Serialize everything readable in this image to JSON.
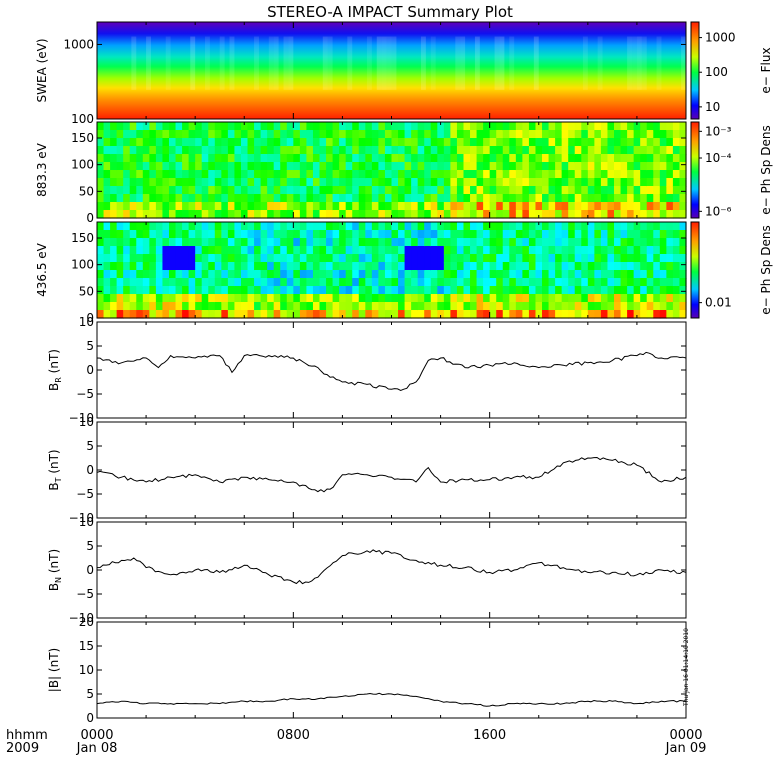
{
  "title": "STEREO-A IMPACT Summary Plot",
  "stamp": "Thu Jan 16 01:14:10 2010",
  "footer": {
    "time_format": "hhmm",
    "year": "2009",
    "tick_times": [
      "0000",
      "0800",
      "1600",
      "0000"
    ],
    "tick_dates": [
      "Jan 08",
      "",
      "",
      "Jan 09"
    ]
  },
  "colors": {
    "line": "#000000",
    "frame": "#000000",
    "background": "#ffffff"
  },
  "chart_data": [
    {
      "type": "heatmap",
      "id": "swea",
      "ylabel": "SWEA (eV)",
      "yscale": "log",
      "ylim": [
        100,
        2000
      ],
      "yticks": [
        100,
        1000
      ],
      "ytick_labels": [
        "100",
        "1000"
      ],
      "colorbar": {
        "label": "e− Flux",
        "scale": "log",
        "ticks": [
          10,
          100,
          1000
        ],
        "tick_labels": [
          "10",
          "100",
          "1000"
        ]
      },
      "colormap": "rainbow"
    },
    {
      "type": "heatmap",
      "id": "pad883",
      "ylabel": "883.3 eV",
      "ylim": [
        0,
        180
      ],
      "yticks": [
        0,
        50,
        100,
        150
      ],
      "ytick_labels": [
        "0",
        "50",
        "100",
        "150"
      ],
      "colorbar": {
        "label": "e− Ph Sp Dens",
        "scale": "log",
        "ticks": [
          1e-06,
          0.0001,
          0.001
        ],
        "tick_labels": [
          "10⁻⁶",
          "10⁻⁴",
          "10⁻³"
        ]
      },
      "colormap": "rainbow"
    },
    {
      "type": "heatmap",
      "id": "pad436",
      "ylabel": "436.5 eV",
      "ylim": [
        0,
        180
      ],
      "yticks": [
        0,
        50,
        100,
        150
      ],
      "ytick_labels": [
        "0",
        "50",
        "100",
        "150"
      ],
      "colorbar": {
        "label": "e− Ph Sp Dens",
        "scale": "log",
        "ticks": [
          0.01
        ],
        "tick_labels": [
          "0.01"
        ]
      },
      "colormap": "rainbow"
    },
    {
      "type": "line",
      "id": "br",
      "ylabel": "B",
      "ylabel_sub": "R",
      "yunit": "(nT)",
      "ylim": [
        -10,
        10
      ],
      "yticks": [
        -10,
        -5,
        0,
        5,
        10
      ],
      "ytick_labels": [
        "−10",
        "−5",
        "0",
        "5",
        "10"
      ],
      "x_hours": [
        0,
        1,
        2,
        2.5,
        3,
        4,
        5,
        5.5,
        6,
        7,
        7.5,
        8,
        9,
        9.5,
        10,
        11,
        12,
        12.5,
        13,
        13.5,
        14,
        15,
        16,
        17,
        18,
        19,
        20,
        21,
        22,
        22.5,
        23,
        24
      ],
      "values": [
        2.5,
        1.5,
        2.5,
        0.5,
        3,
        2.5,
        3,
        -0.5,
        3,
        3,
        3,
        2.5,
        0.5,
        -1.5,
        -2.5,
        -3,
        -4,
        -4,
        -2.5,
        2,
        2.5,
        0.5,
        1,
        1.5,
        0.5,
        1,
        1.5,
        2,
        3,
        3.5,
        2.5,
        2.5
      ]
    },
    {
      "type": "line",
      "id": "bt",
      "ylabel": "B",
      "ylabel_sub": "T",
      "yunit": "(nT)",
      "ylim": [
        -10,
        10
      ],
      "yticks": [
        -10,
        -5,
        0,
        5,
        10
      ],
      "ytick_labels": [
        "−10",
        "−5",
        "0",
        "5",
        "10"
      ],
      "x_hours": [
        0,
        1,
        2,
        3,
        4,
        5,
        6,
        7,
        8,
        9,
        9.5,
        10,
        11,
        12,
        13,
        13.5,
        14,
        15,
        16,
        17,
        18,
        19,
        19.5,
        20,
        21,
        22,
        23,
        24
      ],
      "values": [
        -0.5,
        -1.5,
        -2.5,
        -1.5,
        -1,
        -2.5,
        -1.5,
        -2,
        -2.5,
        -4.5,
        -4,
        -1,
        -1,
        -1.5,
        -2.5,
        0.5,
        -2.5,
        -2,
        -2,
        -1.5,
        -1.5,
        1.5,
        2,
        2.5,
        2,
        1,
        -2.5,
        -1.5
      ]
    },
    {
      "type": "line",
      "id": "bn",
      "ylabel": "B",
      "ylabel_sub": "N",
      "yunit": "(nT)",
      "ylim": [
        -10,
        10
      ],
      "yticks": [
        -10,
        -5,
        0,
        5,
        10
      ],
      "ytick_labels": [
        "−10",
        "−5",
        "0",
        "5",
        "10"
      ],
      "x_hours": [
        0,
        1,
        1.5,
        2,
        3,
        4,
        5,
        6,
        7,
        8,
        8.5,
        9,
        10,
        11,
        12,
        13,
        14,
        15,
        16,
        17,
        18,
        19,
        20,
        21,
        22,
        23,
        24
      ],
      "values": [
        0.5,
        2,
        2.5,
        0.5,
        -1,
        0,
        -0.5,
        1,
        -1,
        -2.5,
        -2.5,
        -1.5,
        3,
        4,
        3.5,
        2,
        1,
        0.5,
        -0.5,
        0,
        1.5,
        0.5,
        -0.5,
        -0.5,
        -1,
        0,
        -0.5
      ]
    },
    {
      "type": "line",
      "id": "bmag",
      "ylabel": "|B|",
      "yunit": "(nT)",
      "ylim": [
        0,
        20
      ],
      "yticks": [
        0,
        5,
        10,
        15,
        20
      ],
      "ytick_labels": [
        "0",
        "5",
        "10",
        "15",
        "20"
      ],
      "x_hours": [
        0,
        1,
        2,
        3,
        4,
        5,
        6,
        7,
        8,
        9,
        10,
        11,
        12,
        13,
        14,
        15,
        16,
        17,
        18,
        19,
        20,
        21,
        22,
        23,
        24
      ],
      "values": [
        3,
        3.5,
        3,
        3,
        3,
        3,
        3.5,
        3.5,
        4,
        4,
        4.5,
        5,
        5,
        4.5,
        3.5,
        3,
        2.5,
        3,
        3,
        3,
        3.5,
        3.5,
        3,
        3.5,
        3.5
      ]
    }
  ]
}
